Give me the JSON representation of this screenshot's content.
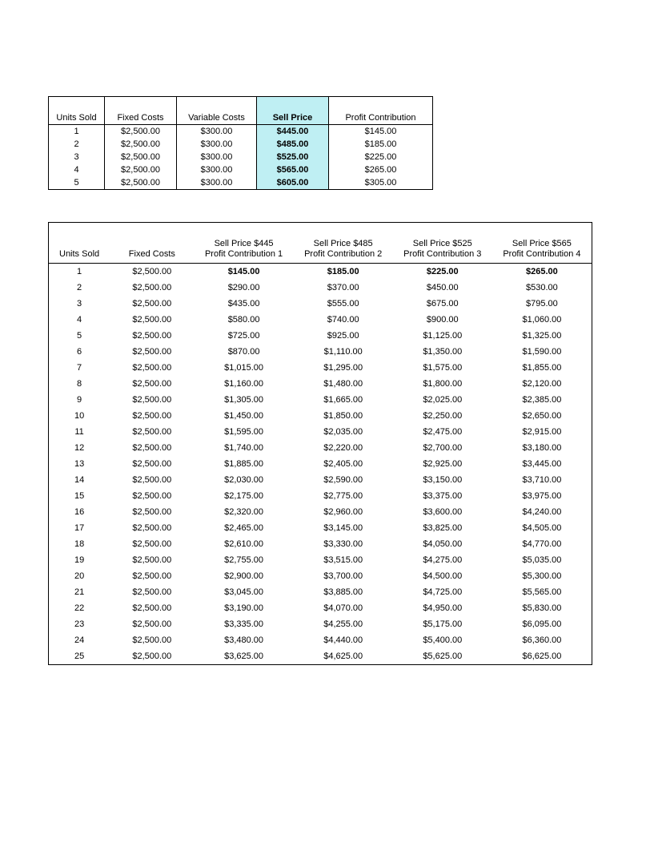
{
  "table1": {
    "columns": [
      "Units Sold",
      "Fixed Costs",
      "Variable Costs",
      "Sell Price",
      "Profit Contribution"
    ],
    "highlight_col_index": 3,
    "highlight_color": "#bfeff3",
    "rows": [
      [
        "1",
        "$2,500.00",
        "$300.00",
        "$445.00",
        "$145.00"
      ],
      [
        "2",
        "$2,500.00",
        "$300.00",
        "$485.00",
        "$185.00"
      ],
      [
        "3",
        "$2,500.00",
        "$300.00",
        "$525.00",
        "$225.00"
      ],
      [
        "4",
        "$2,500.00",
        "$300.00",
        "$565.00",
        "$265.00"
      ],
      [
        "5",
        "$2,500.00",
        "$300.00",
        "$605.00",
        "$305.00"
      ]
    ]
  },
  "table2": {
    "columns": [
      "Units Sold",
      "Fixed Costs",
      "Sell Price $445\nProfit Contribution 1",
      "Sell Price $485\nProfit Contribution 2",
      "Sell Price $525\nProfit Contribution 3",
      "Sell Price $565\nProfit Contribution 4"
    ],
    "bold_first_row_values": true,
    "rows": [
      [
        "1",
        "$2,500.00",
        "$145.00",
        "$185.00",
        "$225.00",
        "$265.00"
      ],
      [
        "2",
        "$2,500.00",
        "$290.00",
        "$370.00",
        "$450.00",
        "$530.00"
      ],
      [
        "3",
        "$2,500.00",
        "$435.00",
        "$555.00",
        "$675.00",
        "$795.00"
      ],
      [
        "4",
        "$2,500.00",
        "$580.00",
        "$740.00",
        "$900.00",
        "$1,060.00"
      ],
      [
        "5",
        "$2,500.00",
        "$725.00",
        "$925.00",
        "$1,125.00",
        "$1,325.00"
      ],
      [
        "6",
        "$2,500.00",
        "$870.00",
        "$1,110.00",
        "$1,350.00",
        "$1,590.00"
      ],
      [
        "7",
        "$2,500.00",
        "$1,015.00",
        "$1,295.00",
        "$1,575.00",
        "$1,855.00"
      ],
      [
        "8",
        "$2,500.00",
        "$1,160.00",
        "$1,480.00",
        "$1,800.00",
        "$2,120.00"
      ],
      [
        "9",
        "$2,500.00",
        "$1,305.00",
        "$1,665.00",
        "$2,025.00",
        "$2,385.00"
      ],
      [
        "10",
        "$2,500.00",
        "$1,450.00",
        "$1,850.00",
        "$2,250.00",
        "$2,650.00"
      ],
      [
        "11",
        "$2,500.00",
        "$1,595.00",
        "$2,035.00",
        "$2,475.00",
        "$2,915.00"
      ],
      [
        "12",
        "$2,500.00",
        "$1,740.00",
        "$2,220.00",
        "$2,700.00",
        "$3,180.00"
      ],
      [
        "13",
        "$2,500.00",
        "$1,885.00",
        "$2,405.00",
        "$2,925.00",
        "$3,445.00"
      ],
      [
        "14",
        "$2,500.00",
        "$2,030.00",
        "$2,590.00",
        "$3,150.00",
        "$3,710.00"
      ],
      [
        "15",
        "$2,500.00",
        "$2,175.00",
        "$2,775.00",
        "$3,375.00",
        "$3,975.00"
      ],
      [
        "16",
        "$2,500.00",
        "$2,320.00",
        "$2,960.00",
        "$3,600.00",
        "$4,240.00"
      ],
      [
        "17",
        "$2,500.00",
        "$2,465.00",
        "$3,145.00",
        "$3,825.00",
        "$4,505.00"
      ],
      [
        "18",
        "$2,500.00",
        "$2,610.00",
        "$3,330.00",
        "$4,050.00",
        "$4,770.00"
      ],
      [
        "19",
        "$2,500.00",
        "$2,755.00",
        "$3,515.00",
        "$4,275.00",
        "$5,035.00"
      ],
      [
        "20",
        "$2,500.00",
        "$2,900.00",
        "$3,700.00",
        "$4,500.00",
        "$5,300.00"
      ],
      [
        "21",
        "$2,500.00",
        "$3,045.00",
        "$3,885.00",
        "$4,725.00",
        "$5,565.00"
      ],
      [
        "22",
        "$2,500.00",
        "$3,190.00",
        "$4,070.00",
        "$4,950.00",
        "$5,830.00"
      ],
      [
        "23",
        "$2,500.00",
        "$3,335.00",
        "$4,255.00",
        "$5,175.00",
        "$6,095.00"
      ],
      [
        "24",
        "$2,500.00",
        "$3,480.00",
        "$4,440.00",
        "$5,400.00",
        "$6,360.00"
      ],
      [
        "25",
        "$2,500.00",
        "$3,625.00",
        "$4,625.00",
        "$5,625.00",
        "$6,625.00"
      ]
    ]
  }
}
